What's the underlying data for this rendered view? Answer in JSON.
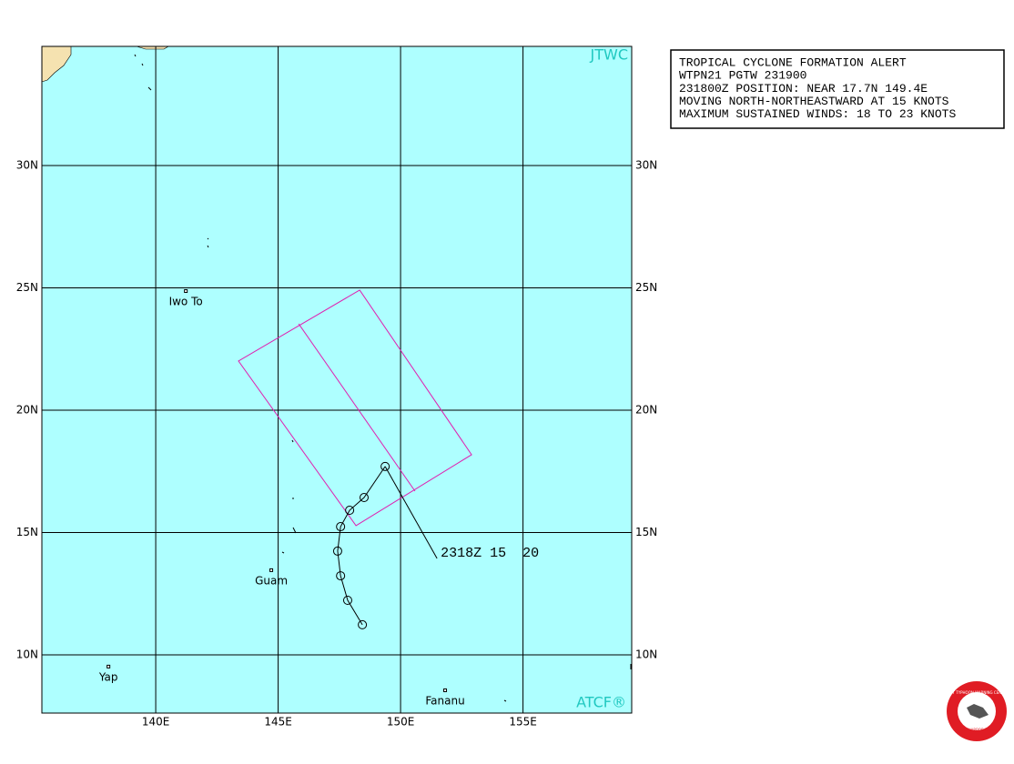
{
  "map": {
    "xlim": [
      135.35,
      159.44
    ],
    "ylim": [
      7.62,
      34.87
    ],
    "xticks": [
      {
        "value": 140,
        "label": "140E"
      },
      {
        "value": 145,
        "label": "145E"
      },
      {
        "value": 150,
        "label": "150E"
      },
      {
        "value": 155,
        "label": "155E"
      }
    ],
    "yticks": [
      {
        "value": 10,
        "label": "10N"
      },
      {
        "value": 15,
        "label": "15N"
      },
      {
        "value": 20,
        "label": "20N"
      },
      {
        "value": 25,
        "label": "25N"
      },
      {
        "value": 30,
        "label": "30N"
      }
    ],
    "source_top": "JTWC",
    "source_bottom": "ATCF®",
    "places": [
      {
        "name": "Iwo To",
        "lon": 141.23,
        "lat": 24.87
      },
      {
        "name": "Guam",
        "lon": 144.72,
        "lat": 13.46
      },
      {
        "name": "Yap",
        "lon": 138.07,
        "lat": 9.52
      },
      {
        "name": "Fananu",
        "lon": 151.82,
        "lat": 8.55
      }
    ],
    "track": [
      {
        "lon": 148.44,
        "lat": 11.23
      },
      {
        "lon": 147.84,
        "lat": 12.23
      },
      {
        "lon": 147.55,
        "lat": 13.23
      },
      {
        "lon": 147.43,
        "lat": 14.24
      },
      {
        "lon": 147.55,
        "lat": 15.24
      },
      {
        "lon": 147.92,
        "lat": 15.91
      },
      {
        "lon": 148.51,
        "lat": 16.43
      },
      {
        "lon": 149.37,
        "lat": 17.7
      }
    ],
    "track_label": {
      "text": "2318Z 15  20",
      "lon": 151.49,
      "lat": 13.94
    },
    "alert_area": {
      "outer": [
        {
          "lon": 143.38,
          "lat": 22.01
        },
        {
          "lon": 148.33,
          "lat": 24.91
        },
        {
          "lon": 152.9,
          "lat": 18.18
        },
        {
          "lon": 148.18,
          "lat": 15.28
        }
      ],
      "inner": [
        {
          "lon": 145.84,
          "lat": 23.53
        },
        {
          "lon": 150.59,
          "lat": 16.69
        }
      ]
    }
  },
  "alert": {
    "lines": [
      "TROPICAL CYCLONE FORMATION ALERT",
      "WTPN21 PGTW 231900",
      "231800Z POSITION: NEAR 17.7N 149.4E",
      "MOVING NORTH-NORTHEASTWARD AT 15 KNOTS",
      "MAXIMUM SUSTAINED WINDS: 18 TO 23 KNOTS"
    ]
  },
  "logo": {
    "top": "JOINT TYPHOON WARNING CENTER",
    "bottom": "PEARL HARBOR HAWAII"
  }
}
